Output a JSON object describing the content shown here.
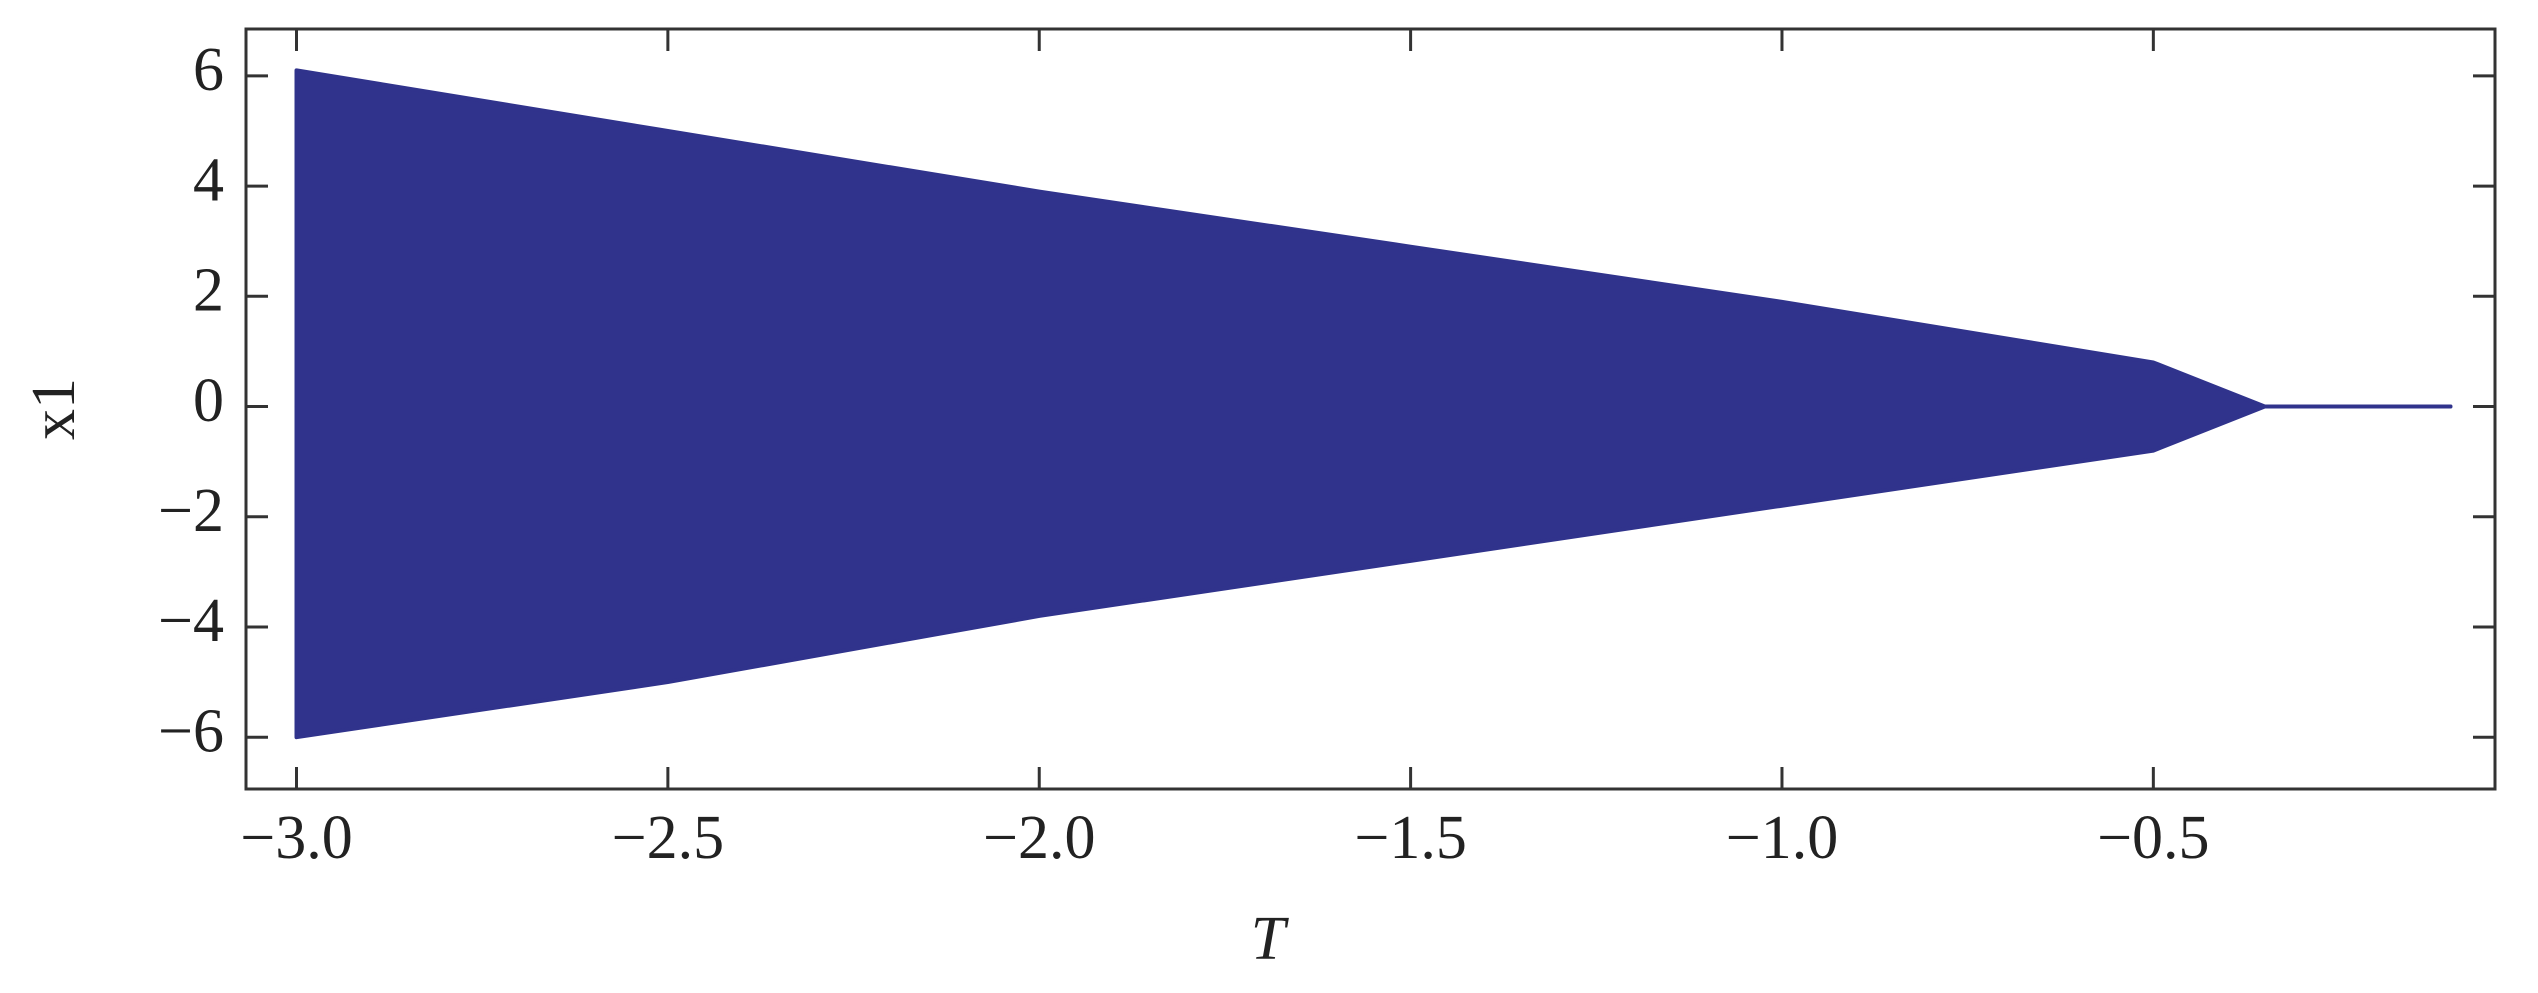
{
  "chart_data": {
    "type": "area",
    "x_label": "T",
    "y_label": "x1",
    "x": [
      -3.0,
      -2.5,
      -2.0,
      -1.5,
      -1.0,
      -0.5,
      -0.35,
      -0.1
    ],
    "series": [
      {
        "color": "#30338c",
        "values": [
          6.1,
          5.0,
          3.9,
          2.9,
          1.9,
          0.8,
          0,
          0
        ]
      },
      {
        "color": "#30338c",
        "values": [
          -6.0,
          -5.0,
          -3.8,
          -2.8,
          -1.8,
          -0.8,
          0,
          0
        ]
      }
    ],
    "xlim": [
      -3.068,
      -0.04
    ],
    "ylim": [
      -6.94,
      6.85
    ],
    "xticks": [
      {
        "value": -3.0,
        "label": "−3.0"
      },
      {
        "value": -2.5,
        "label": "−2.5"
      },
      {
        "value": -2.0,
        "label": "−2.0"
      },
      {
        "value": -1.5,
        "label": "−1.5"
      },
      {
        "value": -1.0,
        "label": "−1.0"
      },
      {
        "value": -0.5,
        "label": "−0.5"
      }
    ],
    "yticks": [
      {
        "value": -6,
        "label": "−6"
      },
      {
        "value": -4,
        "label": "−4"
      },
      {
        "value": -2,
        "label": "−2"
      },
      0,
      2,
      4,
      6
    ],
    "grid": false
  }
}
